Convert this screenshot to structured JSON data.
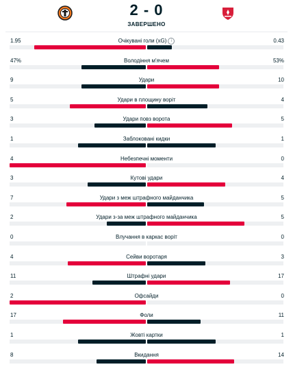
{
  "match": {
    "score": "2 - 0",
    "status": "ЗАВЕРШЕНО"
  },
  "colors": {
    "win": "#e4003b",
    "lose": "#001e28"
  },
  "stats": [
    {
      "name": "Очікувані голи (xG)",
      "home": "1.95",
      "away": "0.43",
      "hv": 1.95,
      "av": 0.43,
      "info": true
    },
    {
      "name": "Володіння м'ячем",
      "home": "47%",
      "away": "53%",
      "hv": 47,
      "av": 53
    },
    {
      "name": "Удари",
      "home": "9",
      "away": "10",
      "hv": 9,
      "av": 10
    },
    {
      "name": "Удари в площину воріт",
      "home": "5",
      "away": "4",
      "hv": 5,
      "av": 4
    },
    {
      "name": "Удари повз ворота",
      "home": "3",
      "away": "5",
      "hv": 3,
      "av": 5
    },
    {
      "name": "Заблоковані кидки",
      "home": "1",
      "away": "1",
      "hv": 1,
      "av": 1
    },
    {
      "name": "Небезпечні моменти",
      "home": "4",
      "away": "0",
      "hv": 4,
      "av": 0
    },
    {
      "name": "Кутові удари",
      "home": "3",
      "away": "4",
      "hv": 3,
      "av": 4
    },
    {
      "name": "Удари з меж штрафного майданчика",
      "home": "7",
      "away": "5",
      "hv": 7,
      "av": 5
    },
    {
      "name": "Удари з-за меж штрафного майданчика",
      "home": "2",
      "away": "5",
      "hv": 2,
      "av": 5
    },
    {
      "name": "Влучання в каркас воріт",
      "home": "0",
      "away": "0",
      "hv": 0,
      "av": 0
    },
    {
      "name": "Сейви воротаря",
      "home": "4",
      "away": "3",
      "hv": 4,
      "av": 3
    },
    {
      "name": "Штрафні удари",
      "home": "11",
      "away": "17",
      "hv": 11,
      "av": 17
    },
    {
      "name": "Офсайди",
      "home": "2",
      "away": "0",
      "hv": 2,
      "av": 0
    },
    {
      "name": "Фоли",
      "home": "17",
      "away": "11",
      "hv": 17,
      "av": 11
    },
    {
      "name": "Жовті картки",
      "home": "1",
      "away": "1",
      "hv": 1,
      "av": 1
    },
    {
      "name": "Вкидання",
      "home": "8",
      "away": "14",
      "hv": 8,
      "av": 14
    }
  ]
}
